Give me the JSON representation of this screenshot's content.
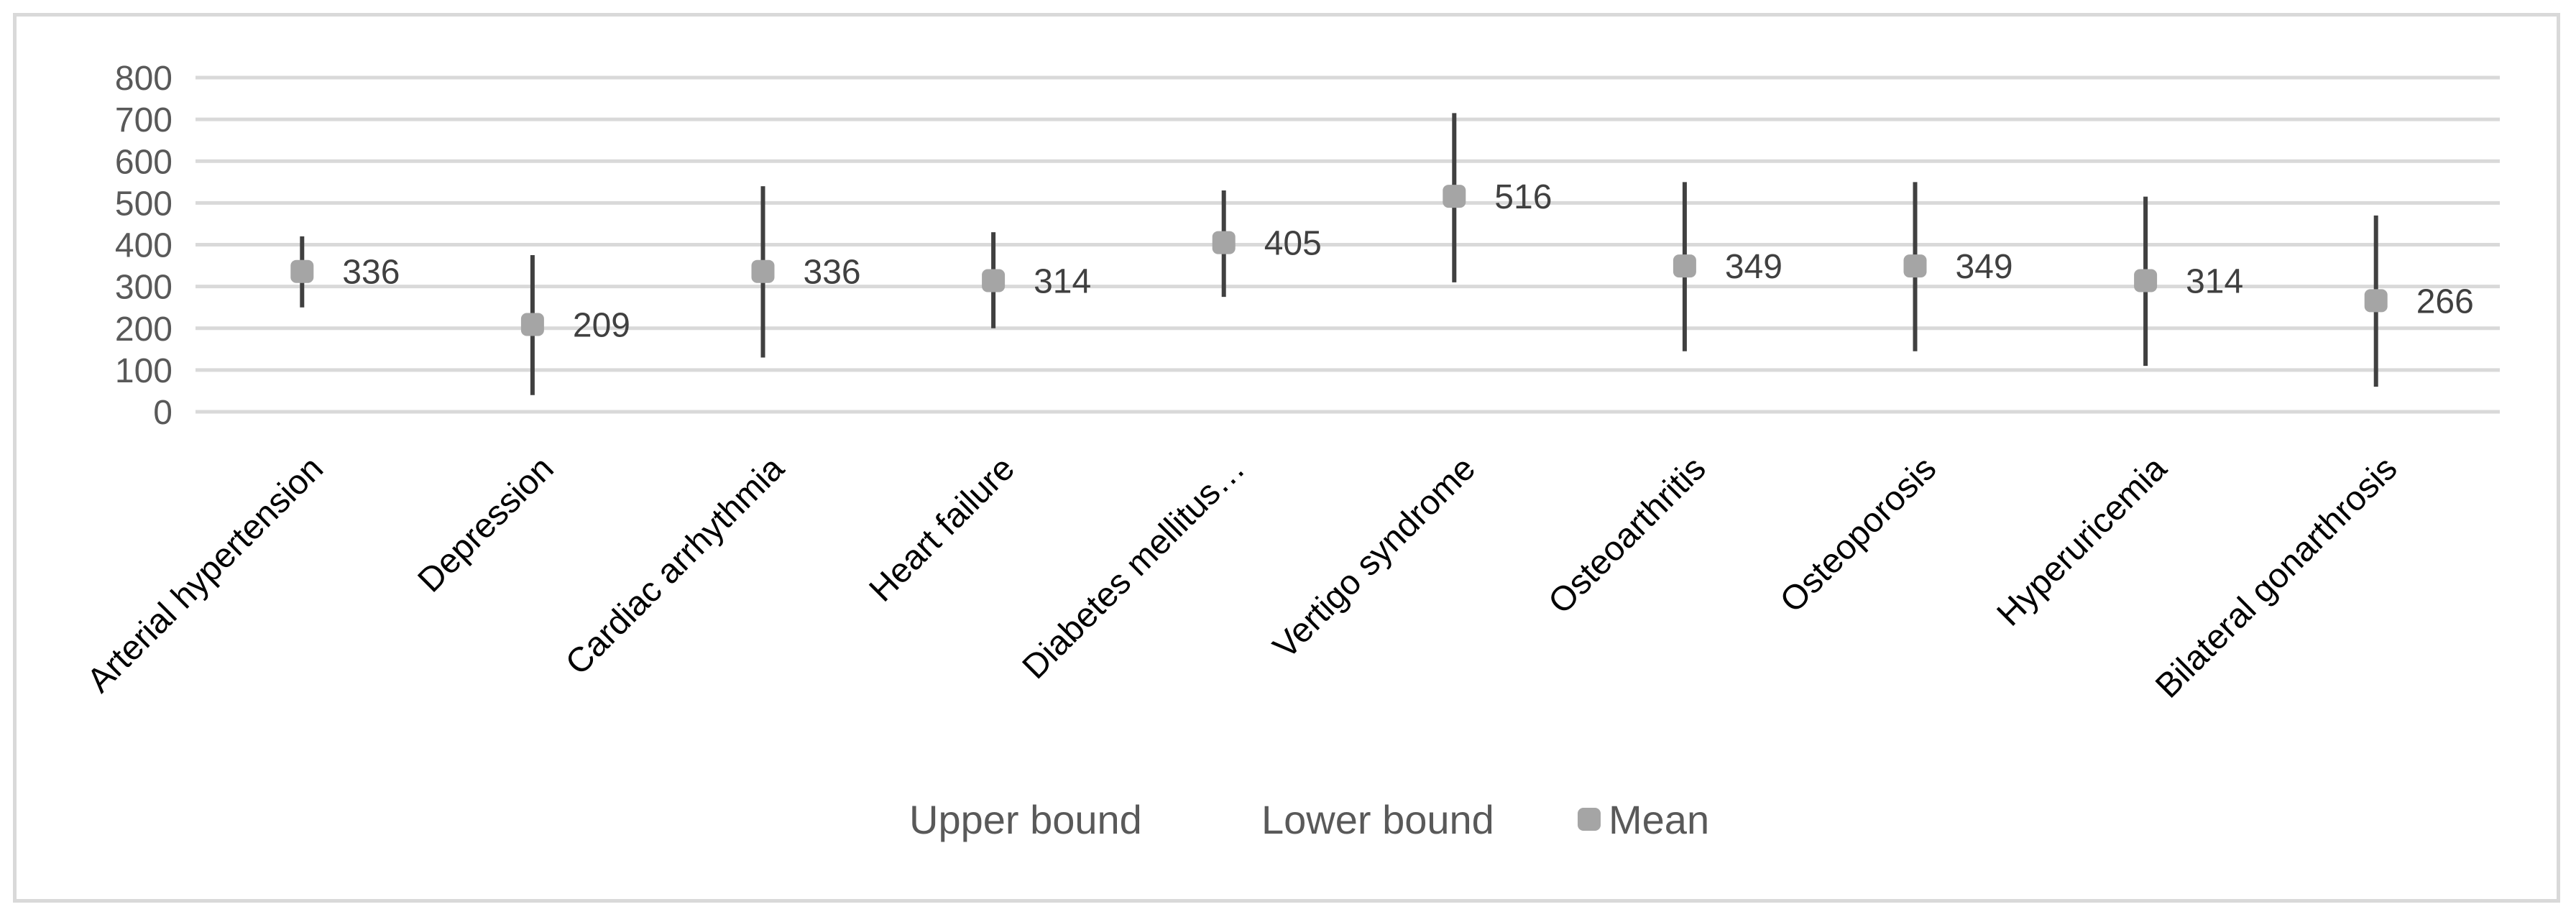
{
  "chart_data": {
    "type": "scatter",
    "title": "",
    "xlabel": "",
    "ylabel": "",
    "ylim": [
      0,
      800
    ],
    "yticks": [
      0,
      100,
      200,
      300,
      400,
      500,
      600,
      700,
      800
    ],
    "grid": true,
    "legend_position": "bottom",
    "categories": [
      "Arterial hypertension",
      "Depression",
      "Cardiac arrhythmia",
      "Heart failure",
      "Diabetes mellitus…",
      "Vertigo syndrome",
      "Osteoarthritis",
      "Osteoporosis",
      "Hyperuricemia",
      "Bilateral gonarthrosis"
    ],
    "series": [
      {
        "name": "Upper bound",
        "values": [
          420,
          375,
          540,
          430,
          530,
          715,
          550,
          550,
          515,
          470
        ]
      },
      {
        "name": "Lower bound",
        "values": [
          250,
          40,
          130,
          200,
          275,
          310,
          145,
          145,
          110,
          60
        ]
      },
      {
        "name": "Mean",
        "values": [
          336,
          209,
          336,
          314,
          405,
          516,
          349,
          349,
          314,
          266
        ]
      }
    ],
    "data_labels": [
      "336",
      "209",
      "336",
      "314",
      "405",
      "516",
      "349",
      "349",
      "314",
      "266"
    ],
    "colors": {
      "range_line": "#404040",
      "mean_marker": "#a5a5a5",
      "grid": "#d9d9d9"
    }
  }
}
